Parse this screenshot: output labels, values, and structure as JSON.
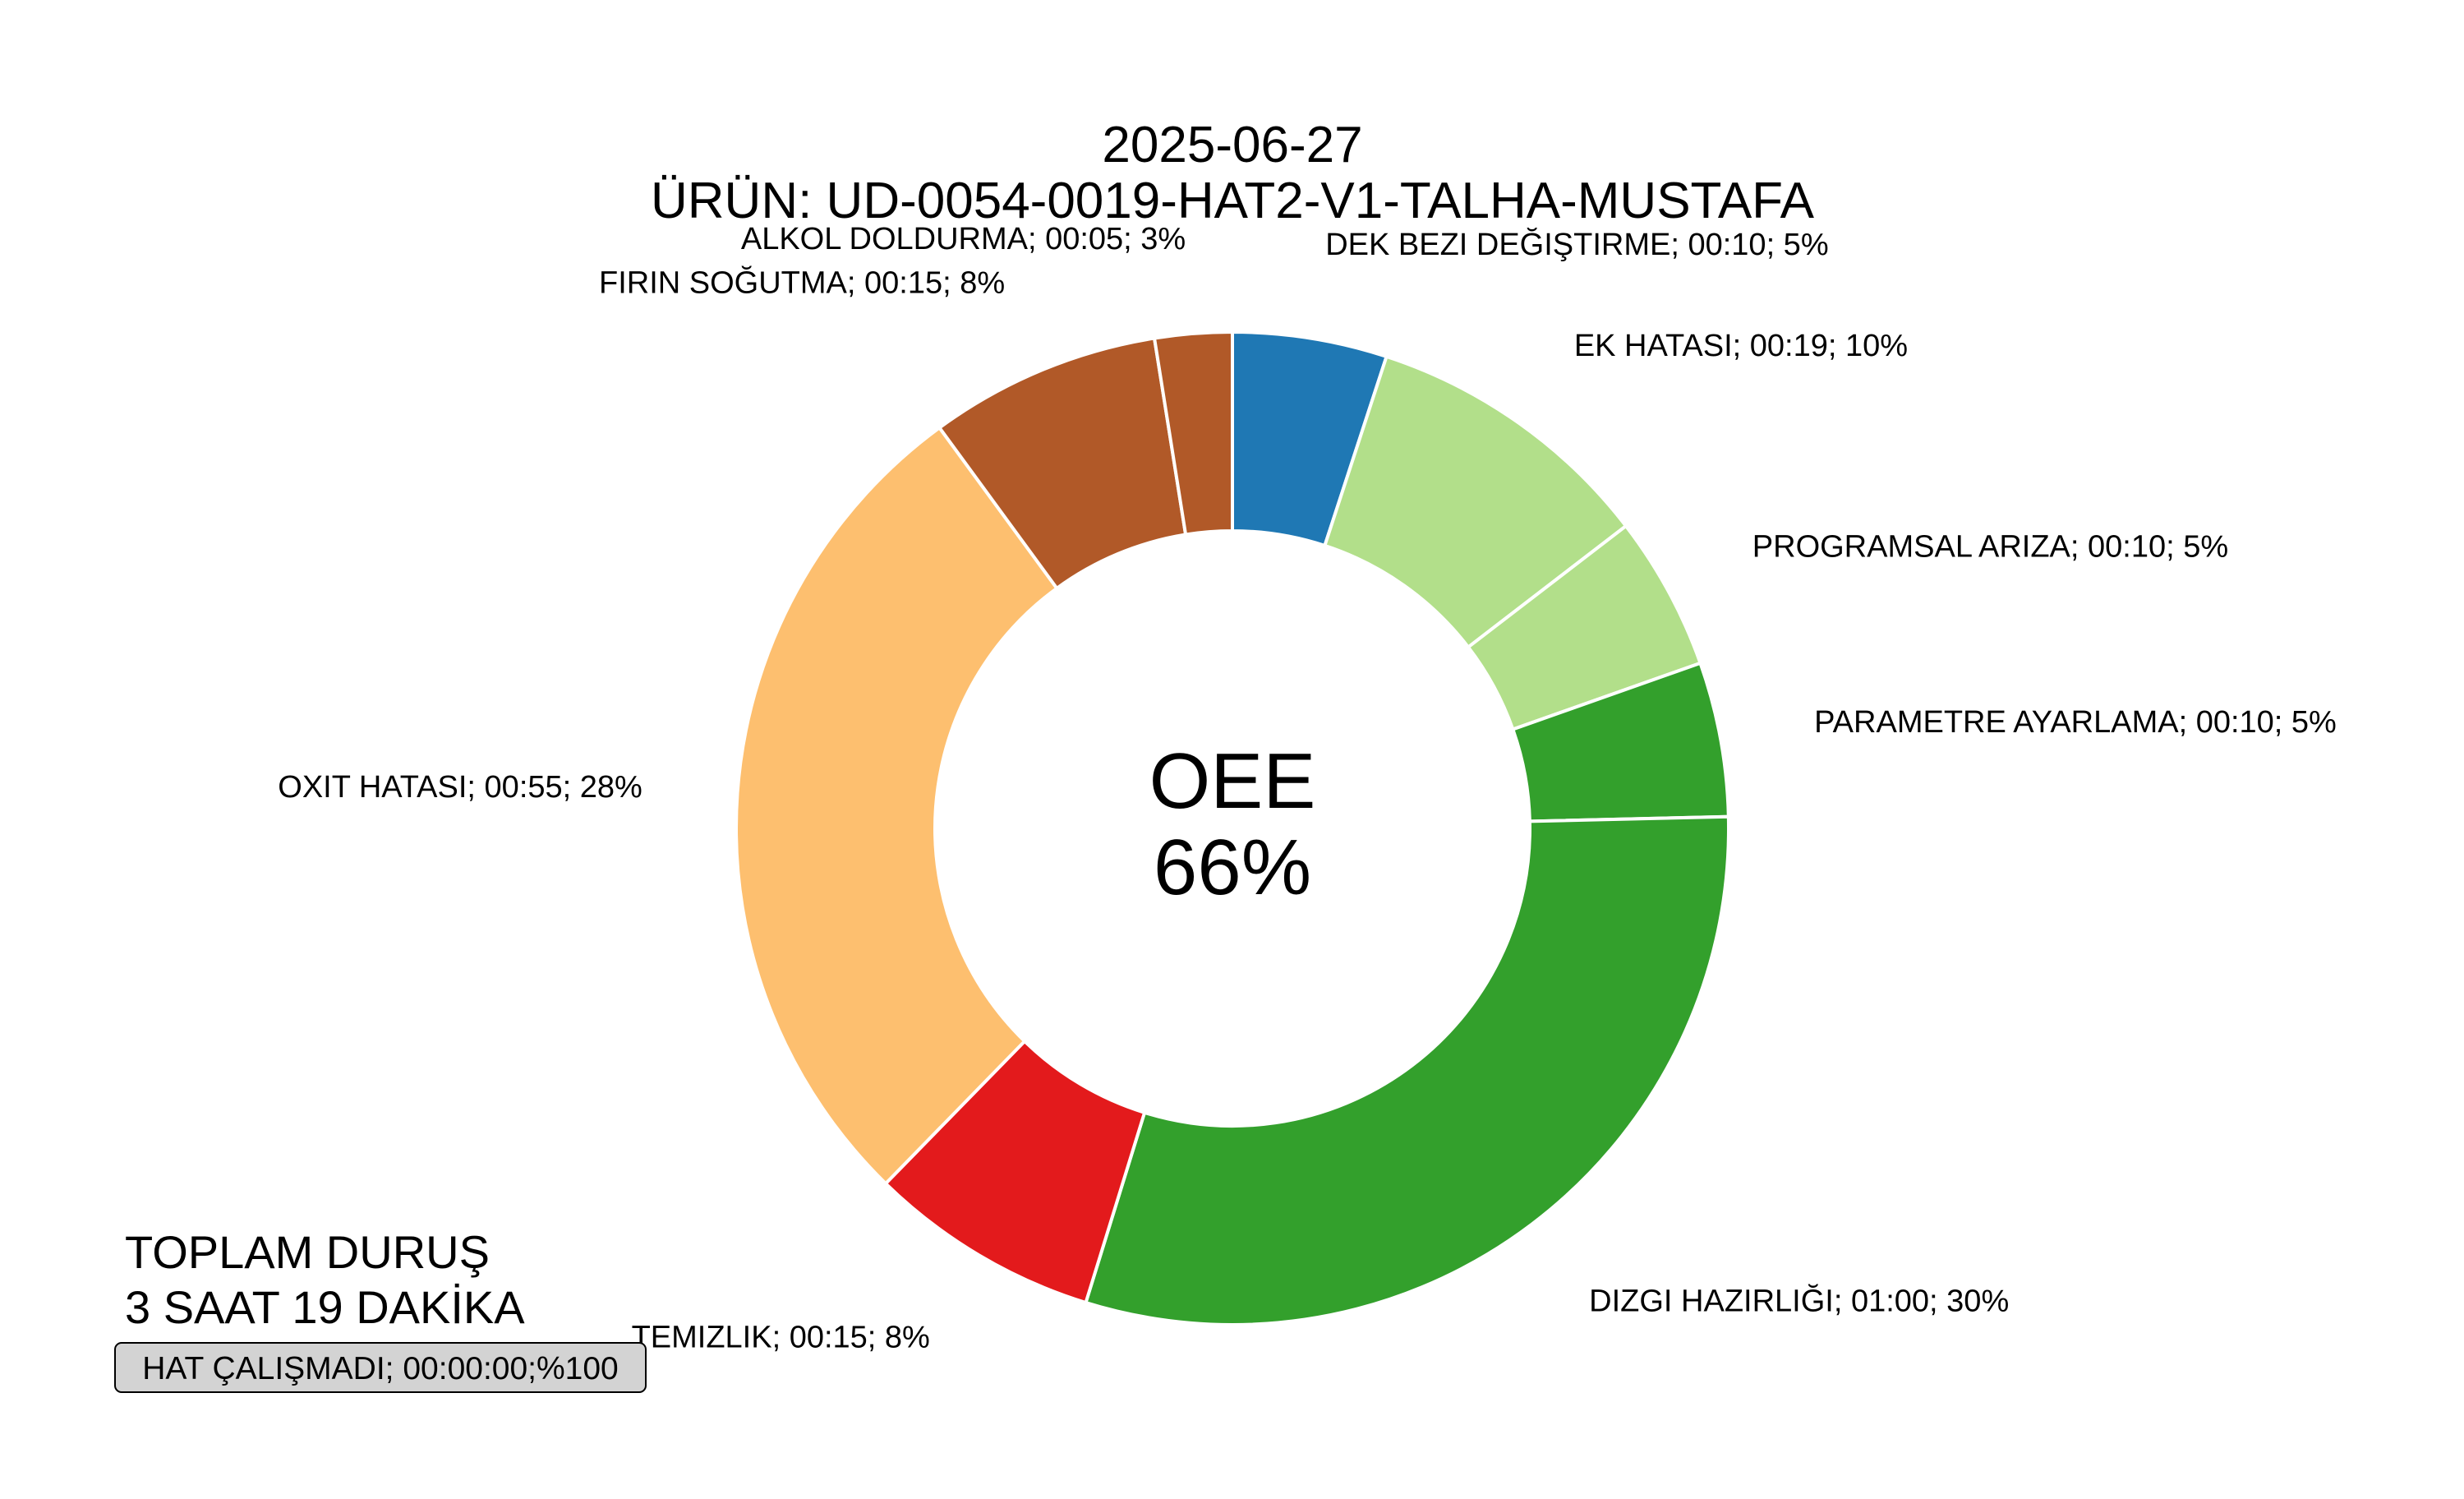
{
  "chart_data": {
    "type": "pie",
    "variant": "donut",
    "title": "2025-06-27",
    "subtitle": "ÜRÜN: UD-0054-0019-HAT2-V1-TALHA-MUSTAFA",
    "center_label": "OEE",
    "center_value": "66%",
    "slices": [
      {
        "label": "DEK BEZI DEĞIŞTIRME; 00:10; 5%",
        "value": 10,
        "color": "#1f78b4"
      },
      {
        "label": "EK HATASI; 00:19; 10%",
        "value": 19,
        "color": "#b2df8a"
      },
      {
        "label": "PROGRAMSAL ARIZA; 00:10; 5%",
        "value": 10,
        "color": "#b2df8a"
      },
      {
        "label": "PARAMETRE AYARLAMA; 00:10; 5%",
        "value": 10,
        "color": "#33a02c"
      },
      {
        "label": "DIZGI HAZIRLIĞI; 01:00; 30%",
        "value": 60,
        "color": "#33a02c"
      },
      {
        "label": "TEMIZLIK; 00:15; 8%",
        "value": 15,
        "color": "#e31a1c"
      },
      {
        "label": "OXIT HATASI; 00:55; 28%",
        "value": 55,
        "color": "#fdbf6f"
      },
      {
        "label": "FIRIN SOĞUTMA; 00:15; 8%",
        "value": 15,
        "color": "#b15928"
      },
      {
        "label": "ALKOL DOLDURMA; 00:05; 3%",
        "value": 5,
        "color": "#b15928"
      }
    ],
    "legend": "none",
    "start": "top, clockwise"
  },
  "summary": {
    "total_line1": "TOPLAM DURUŞ",
    "total_line2": "3 SAAT 19 DAKİKA",
    "status_box": "HAT ÇALIŞMADI; 00:00:00;%100"
  }
}
